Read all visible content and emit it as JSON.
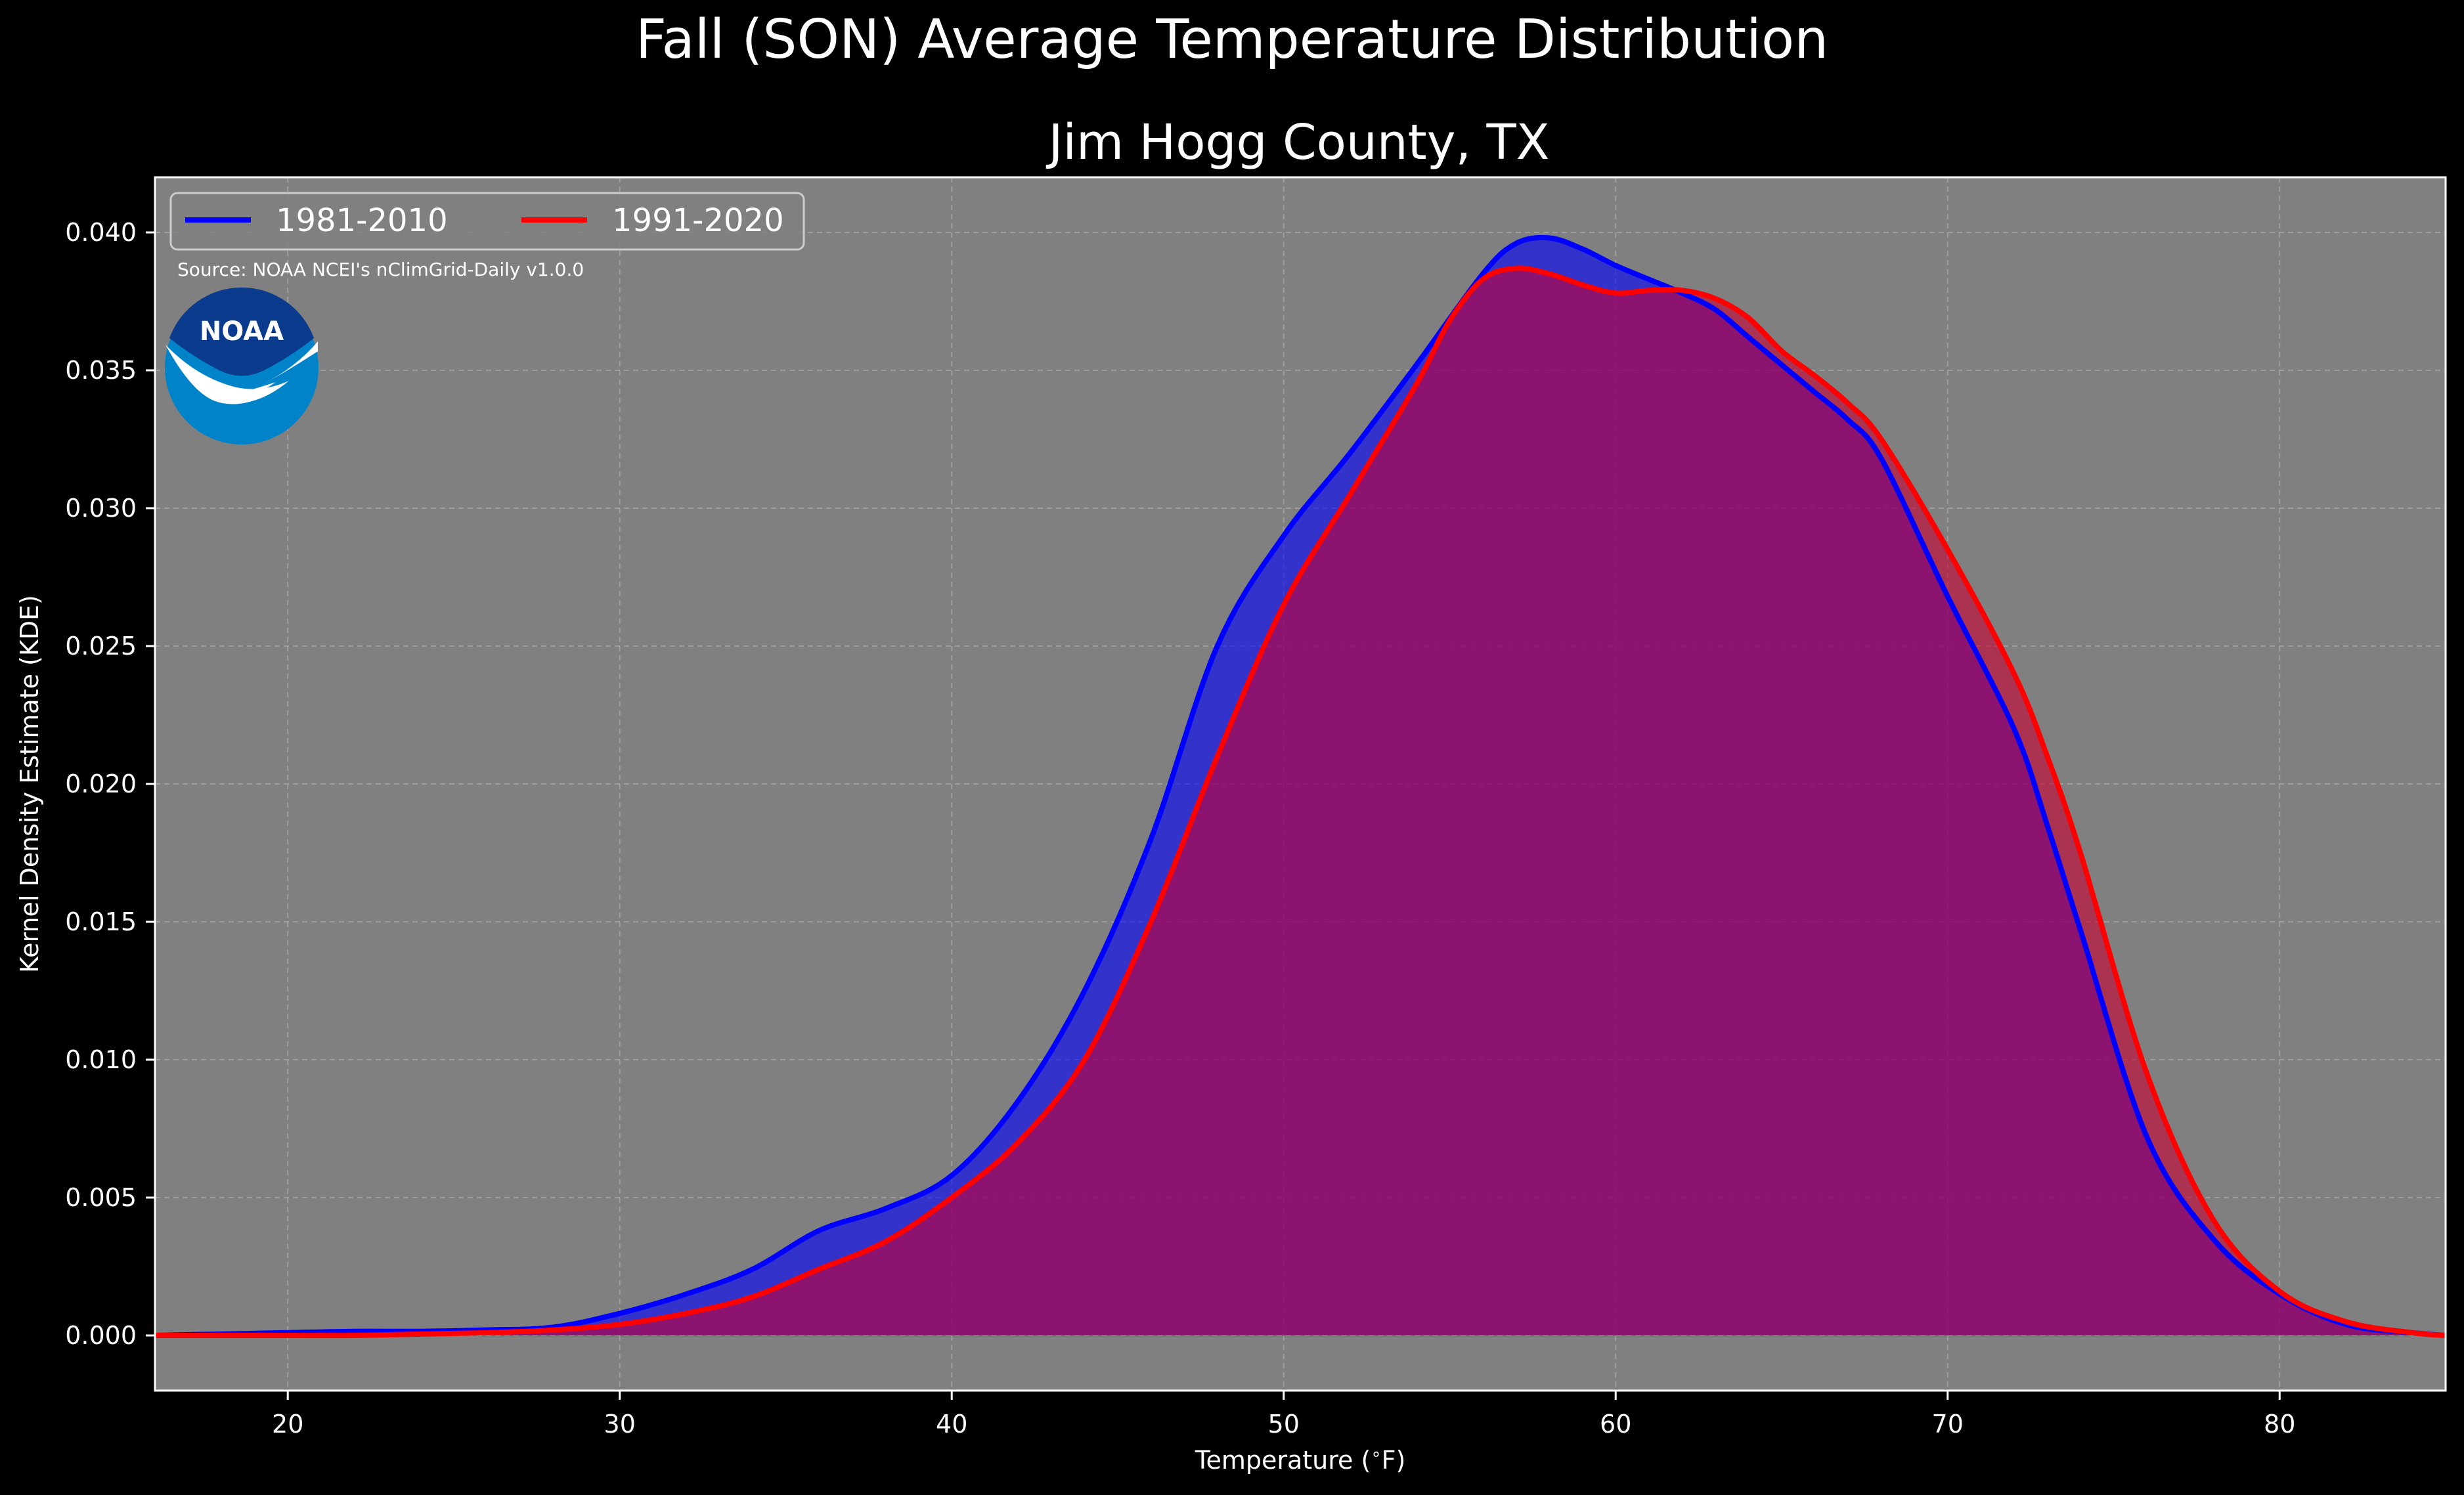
{
  "chart_data": {
    "type": "area",
    "title": "Fall (SON) Average Temperature Distribution",
    "subtitle": "Jim Hogg County, TX",
    "xlabel": "Temperature ($^\\circ$F)",
    "ylabel": "Kernel Density Estimate (KDE)",
    "xlim": [
      16,
      85
    ],
    "ylim": [
      -0.002,
      0.042
    ],
    "xticks": [
      20,
      30,
      40,
      50,
      60,
      70,
      80
    ],
    "yticks": [
      0.0,
      0.005,
      0.01,
      0.015,
      0.02,
      0.025,
      0.03,
      0.035,
      0.04
    ],
    "grid": true,
    "legend_position": "top-left",
    "source_note": "Source: NOAA NCEI's nClimGrid-Daily v1.0.0",
    "logo_text": "NOAA",
    "series": [
      {
        "name": "1981-2010",
        "color": "#0000ff",
        "fill": "#0000ff",
        "x": [
          16,
          18,
          20,
          22,
          24,
          26,
          28,
          30,
          32,
          34,
          36,
          38,
          40,
          42,
          44,
          46,
          48,
          50,
          52,
          54,
          56,
          57,
          58,
          59,
          60,
          61,
          62,
          63,
          64,
          65,
          66,
          67,
          68,
          70,
          72,
          73,
          74,
          76,
          78,
          80,
          82,
          84,
          85
        ],
        "y": [
          0.0,
          5e-05,
          0.0001,
          0.00015,
          0.00015,
          0.0002,
          0.0003,
          0.0008,
          0.0015,
          0.0024,
          0.0038,
          0.0046,
          0.0058,
          0.0085,
          0.0125,
          0.018,
          0.025,
          0.029,
          0.032,
          0.0352,
          0.0385,
          0.0396,
          0.0398,
          0.0394,
          0.0388,
          0.0383,
          0.0378,
          0.0372,
          0.0362,
          0.0352,
          0.0342,
          0.0332,
          0.0318,
          0.0268,
          0.022,
          0.0185,
          0.0147,
          0.0072,
          0.0035,
          0.0015,
          0.0004,
          0.0001,
          0.0
        ]
      },
      {
        "name": "1991-2020",
        "color": "#ff0000",
        "fill": "#c80032",
        "x": [
          16,
          18,
          20,
          22,
          24,
          26,
          28,
          30,
          32,
          34,
          36,
          38,
          40,
          42,
          44,
          46,
          48,
          50,
          52,
          54,
          55,
          56,
          57,
          58,
          59,
          60,
          61,
          62,
          63,
          64,
          65,
          66,
          67,
          68,
          70,
          72,
          73,
          74,
          76,
          78,
          80,
          82,
          84,
          85
        ],
        "y": [
          0.0,
          0.0,
          0.0,
          0.0,
          5e-05,
          0.0001,
          0.0002,
          0.0004,
          0.0008,
          0.0014,
          0.0024,
          0.0034,
          0.005,
          0.007,
          0.01,
          0.015,
          0.021,
          0.0265,
          0.0305,
          0.0345,
          0.0368,
          0.0383,
          0.0387,
          0.0385,
          0.0381,
          0.0378,
          0.0379,
          0.0379,
          0.0376,
          0.0369,
          0.0357,
          0.0348,
          0.0338,
          0.0325,
          0.0285,
          0.024,
          0.021,
          0.0175,
          0.0095,
          0.0042,
          0.0016,
          0.0005,
          0.0001,
          0.0
        ]
      }
    ]
  }
}
